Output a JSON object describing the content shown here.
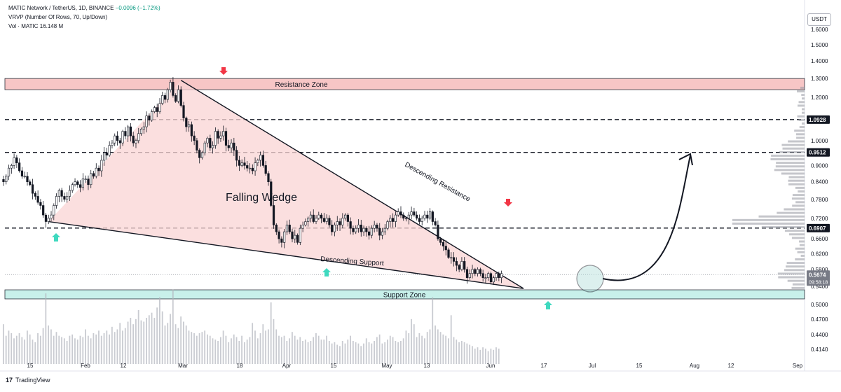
{
  "header": {
    "symbol": "MATIC Network / TetherUS, 1D, BINANCE",
    "change": "−0.0096 (−1.72%)",
    "indicator": "VRVP (Number Of Rows, 70, Up/Down)",
    "volume": "Vol · MATIC  16.148 M"
  },
  "currency_label": "USDT",
  "footer": {
    "logo": "17",
    "brand": "TradingView"
  },
  "colors": {
    "up": "#089981",
    "down": "#131722",
    "resistance_zone": "#f7c6c6",
    "support_zone": "#c8f0ea",
    "wedge_fill": "#f9d4d4",
    "arrow_red": "#f23645",
    "arrow_teal": "#3fd9bf"
  },
  "chart_data": {
    "type": "candlestick",
    "symbol": "MATIC/USDT",
    "timeframe": "1D",
    "exchange": "BINANCE",
    "x_axis_ticks": [
      "15",
      "Feb",
      "12",
      "Mar",
      "18",
      "Apr",
      "15",
      "May",
      "13",
      "Jun",
      "17",
      "Jul",
      "15",
      "Aug",
      "12",
      "Sep"
    ],
    "y_axis_ticks": [
      "1.6000",
      "1.5000",
      "1.4000",
      "1.3000",
      "1.2000",
      "1.1000",
      "1.0000",
      "0.9000",
      "0.8400",
      "0.7800",
      "0.7200",
      "0.6600",
      "0.6200",
      "0.5800",
      "0.5400",
      "0.5000",
      "0.4700",
      "0.4400",
      "0.4140"
    ],
    "y_scale": "log",
    "price_labels": [
      {
        "value": "1.0928",
        "style": "dark"
      },
      {
        "value": "0.9512",
        "style": "dark"
      },
      {
        "value": "0.6907",
        "style": "dark"
      },
      {
        "value": "0.5674",
        "style": "gray",
        "countdown": "09:58:18"
      }
    ],
    "horizontal_levels": [
      1.0928,
      0.9512,
      0.6907
    ],
    "zones": [
      {
        "label": "Resistance Zone",
        "low": 1.24,
        "high": 1.3
      },
      {
        "label": "Support Zone",
        "low": 0.512,
        "high": 0.532
      }
    ],
    "annotations": [
      "Falling Wedge",
      "Descending Resistance",
      "Descending Support"
    ],
    "wedge": {
      "resistance_line": [
        {
          "x": "2024-03-13",
          "y": 1.29
        },
        {
          "x": "2024-07-15",
          "y": 0.535
        }
      ],
      "support_line": [
        {
          "x": "2024-01-23",
          "y": 0.71
        },
        {
          "x": "2024-07-15",
          "y": 0.535
        }
      ]
    },
    "projection": "upward breakout toward ~0.95",
    "close_series": {
      "start": "2024-01-06",
      "values": [
        0.84,
        0.86,
        0.89,
        0.9,
        0.93,
        0.91,
        0.88,
        0.86,
        0.86,
        0.84,
        0.83,
        0.8,
        0.79,
        0.77,
        0.76,
        0.73,
        0.71,
        0.72,
        0.73,
        0.76,
        0.79,
        0.81,
        0.79,
        0.78,
        0.79,
        0.81,
        0.83,
        0.84,
        0.83,
        0.82,
        0.85,
        0.85,
        0.83,
        0.87,
        0.86,
        0.89,
        0.88,
        0.92,
        0.95,
        0.94,
        0.98,
        0.99,
        1.02,
        1.0,
        0.99,
        1.04,
        1.02,
        1.06,
        1.02,
        0.99,
        1.0,
        1.03,
        1.05,
        1.06,
        1.11,
        1.09,
        1.13,
        1.15,
        1.13,
        1.17,
        1.21,
        1.19,
        1.24,
        1.28,
        1.21,
        1.18,
        1.24,
        1.16,
        1.1,
        1.06,
        1.07,
        1.02,
        1.0,
        0.96,
        0.93,
        0.95,
        0.99,
        1.01,
        0.97,
        0.98,
        1.04,
        1.01,
        1.02,
        1.04,
        0.98,
        0.97,
        0.99,
        0.96,
        0.92,
        0.9,
        0.91,
        0.9,
        0.89,
        0.89,
        0.88,
        0.91,
        0.92,
        0.94,
        0.9,
        0.87,
        0.84,
        0.76,
        0.7,
        0.68,
        0.66,
        0.65,
        0.68,
        0.7,
        0.68,
        0.66,
        0.67,
        0.65,
        0.69,
        0.7,
        0.71,
        0.72,
        0.73,
        0.71,
        0.72,
        0.73,
        0.72,
        0.71,
        0.72,
        0.7,
        0.68,
        0.7,
        0.71,
        0.7,
        0.72,
        0.73,
        0.71,
        0.69,
        0.68,
        0.69,
        0.7,
        0.68,
        0.69,
        0.68,
        0.67,
        0.69,
        0.7,
        0.69,
        0.67,
        0.68,
        0.69,
        0.71,
        0.72,
        0.71,
        0.73,
        0.74,
        0.73,
        0.72,
        0.72,
        0.73,
        0.74,
        0.73,
        0.72,
        0.71,
        0.72,
        0.73,
        0.72,
        0.74,
        0.71,
        0.7,
        0.66,
        0.65,
        0.64,
        0.63,
        0.61,
        0.61,
        0.6,
        0.59,
        0.58,
        0.6,
        0.58,
        0.56,
        0.57,
        0.58,
        0.57,
        0.58,
        0.57,
        0.56,
        0.56,
        0.57,
        0.55,
        0.56,
        0.57,
        0.56,
        0.57
      ]
    },
    "volume_series": [
      31,
      22,
      26,
      24,
      20,
      22,
      24,
      21,
      19,
      26,
      23,
      19,
      17,
      24,
      22,
      28,
      55,
      30,
      27,
      22,
      25,
      22,
      21,
      20,
      18,
      22,
      23,
      20,
      19,
      22,
      21,
      27,
      22,
      20,
      24,
      23,
      26,
      22,
      24,
      26,
      23,
      29,
      25,
      27,
      32,
      26,
      28,
      33,
      36,
      31,
      35,
      42,
      34,
      33,
      36,
      38,
      40,
      36,
      44,
      52,
      41,
      30,
      32,
      39,
      58,
      31,
      28,
      37,
      33,
      30,
      26,
      25,
      24,
      22,
      24,
      25,
      26,
      23,
      22,
      20,
      19,
      18,
      21,
      26,
      22,
      17,
      20,
      23,
      21,
      18,
      22,
      17,
      19,
      21,
      32,
      26,
      20,
      24,
      31,
      26,
      27,
      48,
      35,
      27,
      22,
      21,
      22,
      18,
      20,
      25,
      22,
      19,
      21,
      18,
      19,
      17,
      18,
      21,
      24,
      22,
      19,
      19,
      22,
      18,
      16,
      17,
      15,
      14,
      18,
      16,
      19,
      22,
      18,
      17,
      16,
      14,
      16,
      20,
      17,
      16,
      18,
      21,
      23,
      16,
      17,
      19,
      22,
      21,
      18,
      17,
      18,
      20,
      26,
      24,
      35,
      31,
      21,
      24,
      22,
      20,
      25,
      27,
      52,
      30,
      27,
      25,
      23,
      22,
      20,
      38,
      21,
      19,
      17,
      18,
      17,
      16,
      15,
      14,
      12,
      13,
      11,
      13,
      12,
      10,
      12,
      11,
      13,
      12
    ]
  }
}
